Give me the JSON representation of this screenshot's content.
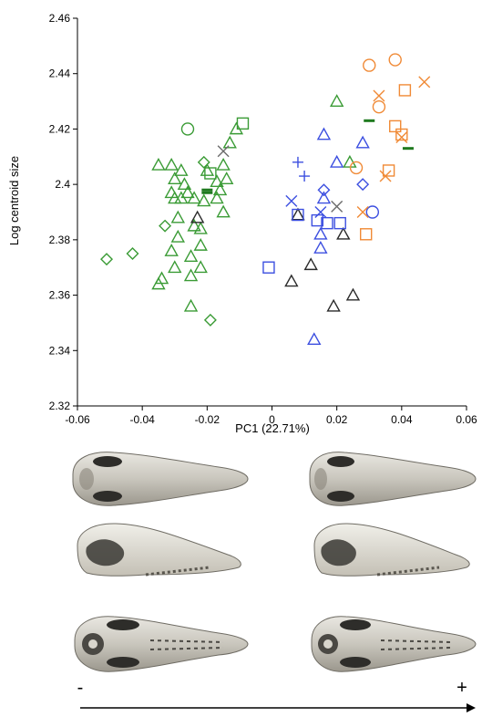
{
  "chart_data": {
    "type": "scatter",
    "title": "",
    "xlabel": "PC1 (22.71%)",
    "ylabel": "Log centroid size",
    "xlim": [
      -0.06,
      0.06
    ],
    "ylim": [
      2.32,
      2.46
    ],
    "xticks": [
      "-0.06",
      "-0.04",
      "-0.02",
      "0",
      "0.02",
      "0.04",
      "0.06"
    ],
    "yticks": [
      "2.32",
      "2.34",
      "2.36",
      "2.38",
      "2.4",
      "2.42",
      "2.44",
      "2.46"
    ],
    "grid": false,
    "legend": "none",
    "colors": {
      "green": "#3a9b35",
      "blue": "#3c4fe0",
      "orange": "#f08a36",
      "black": "#2a2a2a",
      "gray": "#6b6b6b",
      "dark_green": "#1f7a1f"
    },
    "series": [
      {
        "group": "green-triangle",
        "marker": "triangle",
        "color": "#3a9b35",
        "points": [
          [
            -0.035,
            2.407
          ],
          [
            -0.031,
            2.407
          ],
          [
            -0.03,
            2.402
          ],
          [
            -0.028,
            2.405
          ],
          [
            -0.027,
            2.4
          ],
          [
            -0.026,
            2.397
          ],
          [
            -0.03,
            2.395
          ],
          [
            -0.031,
            2.397
          ],
          [
            -0.028,
            2.395
          ],
          [
            -0.024,
            2.395
          ],
          [
            -0.021,
            2.394
          ],
          [
            -0.017,
            2.395
          ],
          [
            -0.016,
            2.398
          ],
          [
            -0.014,
            2.402
          ],
          [
            -0.013,
            2.415
          ],
          [
            -0.011,
            2.42
          ],
          [
            -0.029,
            2.388
          ],
          [
            -0.024,
            2.385
          ],
          [
            -0.022,
            2.384
          ],
          [
            -0.029,
            2.381
          ],
          [
            -0.022,
            2.378
          ],
          [
            -0.031,
            2.376
          ],
          [
            -0.025,
            2.374
          ],
          [
            -0.022,
            2.37
          ],
          [
            -0.03,
            2.37
          ],
          [
            -0.034,
            2.366
          ],
          [
            -0.035,
            2.364
          ],
          [
            -0.025,
            2.367
          ],
          [
            -0.025,
            2.356
          ],
          [
            -0.015,
            2.39
          ],
          [
            -0.017,
            2.401
          ],
          [
            -0.02,
            2.405
          ],
          [
            -0.015,
            2.407
          ]
        ]
      },
      {
        "group": "green-diamond",
        "marker": "diamond",
        "color": "#3a9b35",
        "points": [
          [
            -0.051,
            2.373
          ],
          [
            -0.043,
            2.375
          ],
          [
            -0.033,
            2.385
          ],
          [
            -0.021,
            2.408
          ],
          [
            -0.019,
            2.351
          ]
        ]
      },
      {
        "group": "green-circle",
        "marker": "circle",
        "color": "#3a9b35",
        "points": [
          [
            -0.026,
            2.42
          ]
        ]
      },
      {
        "group": "green-square",
        "marker": "square",
        "color": "#3a9b35",
        "points": [
          [
            -0.019,
            2.404
          ],
          [
            -0.009,
            2.422
          ]
        ]
      },
      {
        "group": "green-dash",
        "marker": "dash",
        "color": "#1f7a1f",
        "points": [
          [
            -0.02,
            2.397
          ],
          [
            -0.02,
            2.398
          ]
        ]
      },
      {
        "group": "black-triangle",
        "marker": "triangle",
        "color": "#2a2a2a",
        "points": [
          [
            -0.023,
            2.388
          ],
          [
            0.006,
            2.365
          ],
          [
            0.008,
            2.389
          ],
          [
            0.012,
            2.371
          ],
          [
            0.019,
            2.356
          ],
          [
            0.022,
            2.382
          ],
          [
            0.025,
            2.36
          ]
        ]
      },
      {
        "group": "gray-cross",
        "marker": "x",
        "color": "#6b6b6b",
        "points": [
          [
            -0.015,
            2.412
          ],
          [
            0.02,
            2.392
          ]
        ]
      },
      {
        "group": "blue-triangle",
        "marker": "triangle",
        "color": "#3c4fe0",
        "points": [
          [
            0.013,
            2.344
          ],
          [
            0.015,
            2.377
          ],
          [
            0.015,
            2.382
          ],
          [
            0.016,
            2.395
          ],
          [
            0.016,
            2.418
          ],
          [
            0.028,
            2.415
          ],
          [
            0.02,
            2.408
          ]
        ]
      },
      {
        "group": "blue-square",
        "marker": "square",
        "color": "#3c4fe0",
        "points": [
          [
            -0.001,
            2.37
          ],
          [
            0.008,
            2.389
          ],
          [
            0.014,
            2.387
          ],
          [
            0.017,
            2.386
          ],
          [
            0.021,
            2.386
          ]
        ]
      },
      {
        "group": "blue-diamond",
        "marker": "diamond",
        "color": "#3c4fe0",
        "points": [
          [
            0.016,
            2.398
          ],
          [
            0.028,
            2.4
          ]
        ]
      },
      {
        "group": "blue-plus",
        "marker": "plus",
        "color": "#3c4fe0",
        "points": [
          [
            0.008,
            2.408
          ],
          [
            0.01,
            2.403
          ]
        ]
      },
      {
        "group": "blue-cross",
        "marker": "x",
        "color": "#3c4fe0",
        "points": [
          [
            0.006,
            2.394
          ],
          [
            0.015,
            2.39
          ]
        ]
      },
      {
        "group": "blue-circle",
        "marker": "circle",
        "color": "#3c4fe0",
        "points": [
          [
            0.031,
            2.39
          ]
        ]
      },
      {
        "group": "green-triangle-right",
        "marker": "triangle",
        "color": "#3a9b35",
        "points": [
          [
            0.02,
            2.43
          ],
          [
            0.024,
            2.408
          ]
        ]
      },
      {
        "group": "green-dash-right",
        "marker": "dash",
        "color": "#1f7a1f",
        "points": [
          [
            0.03,
            2.423
          ],
          [
            0.042,
            2.413
          ]
        ]
      },
      {
        "group": "orange-circle",
        "marker": "circle",
        "color": "#f08a36",
        "points": [
          [
            0.03,
            2.443
          ],
          [
            0.038,
            2.445
          ],
          [
            0.033,
            2.428
          ],
          [
            0.026,
            2.406
          ]
        ]
      },
      {
        "group": "orange-square",
        "marker": "square",
        "color": "#f08a36",
        "points": [
          [
            0.038,
            2.421
          ],
          [
            0.04,
            2.418
          ],
          [
            0.036,
            2.405
          ],
          [
            0.041,
            2.434
          ],
          [
            0.029,
            2.382
          ]
        ]
      },
      {
        "group": "orange-cross",
        "marker": "x",
        "color": "#f08a36",
        "points": [
          [
            0.033,
            2.432
          ],
          [
            0.047,
            2.437
          ],
          [
            0.04,
            2.417
          ],
          [
            0.035,
            2.403
          ],
          [
            0.028,
            2.39
          ]
        ]
      }
    ]
  },
  "skull_panel": {
    "left_sign": "-",
    "right_sign": "+"
  }
}
